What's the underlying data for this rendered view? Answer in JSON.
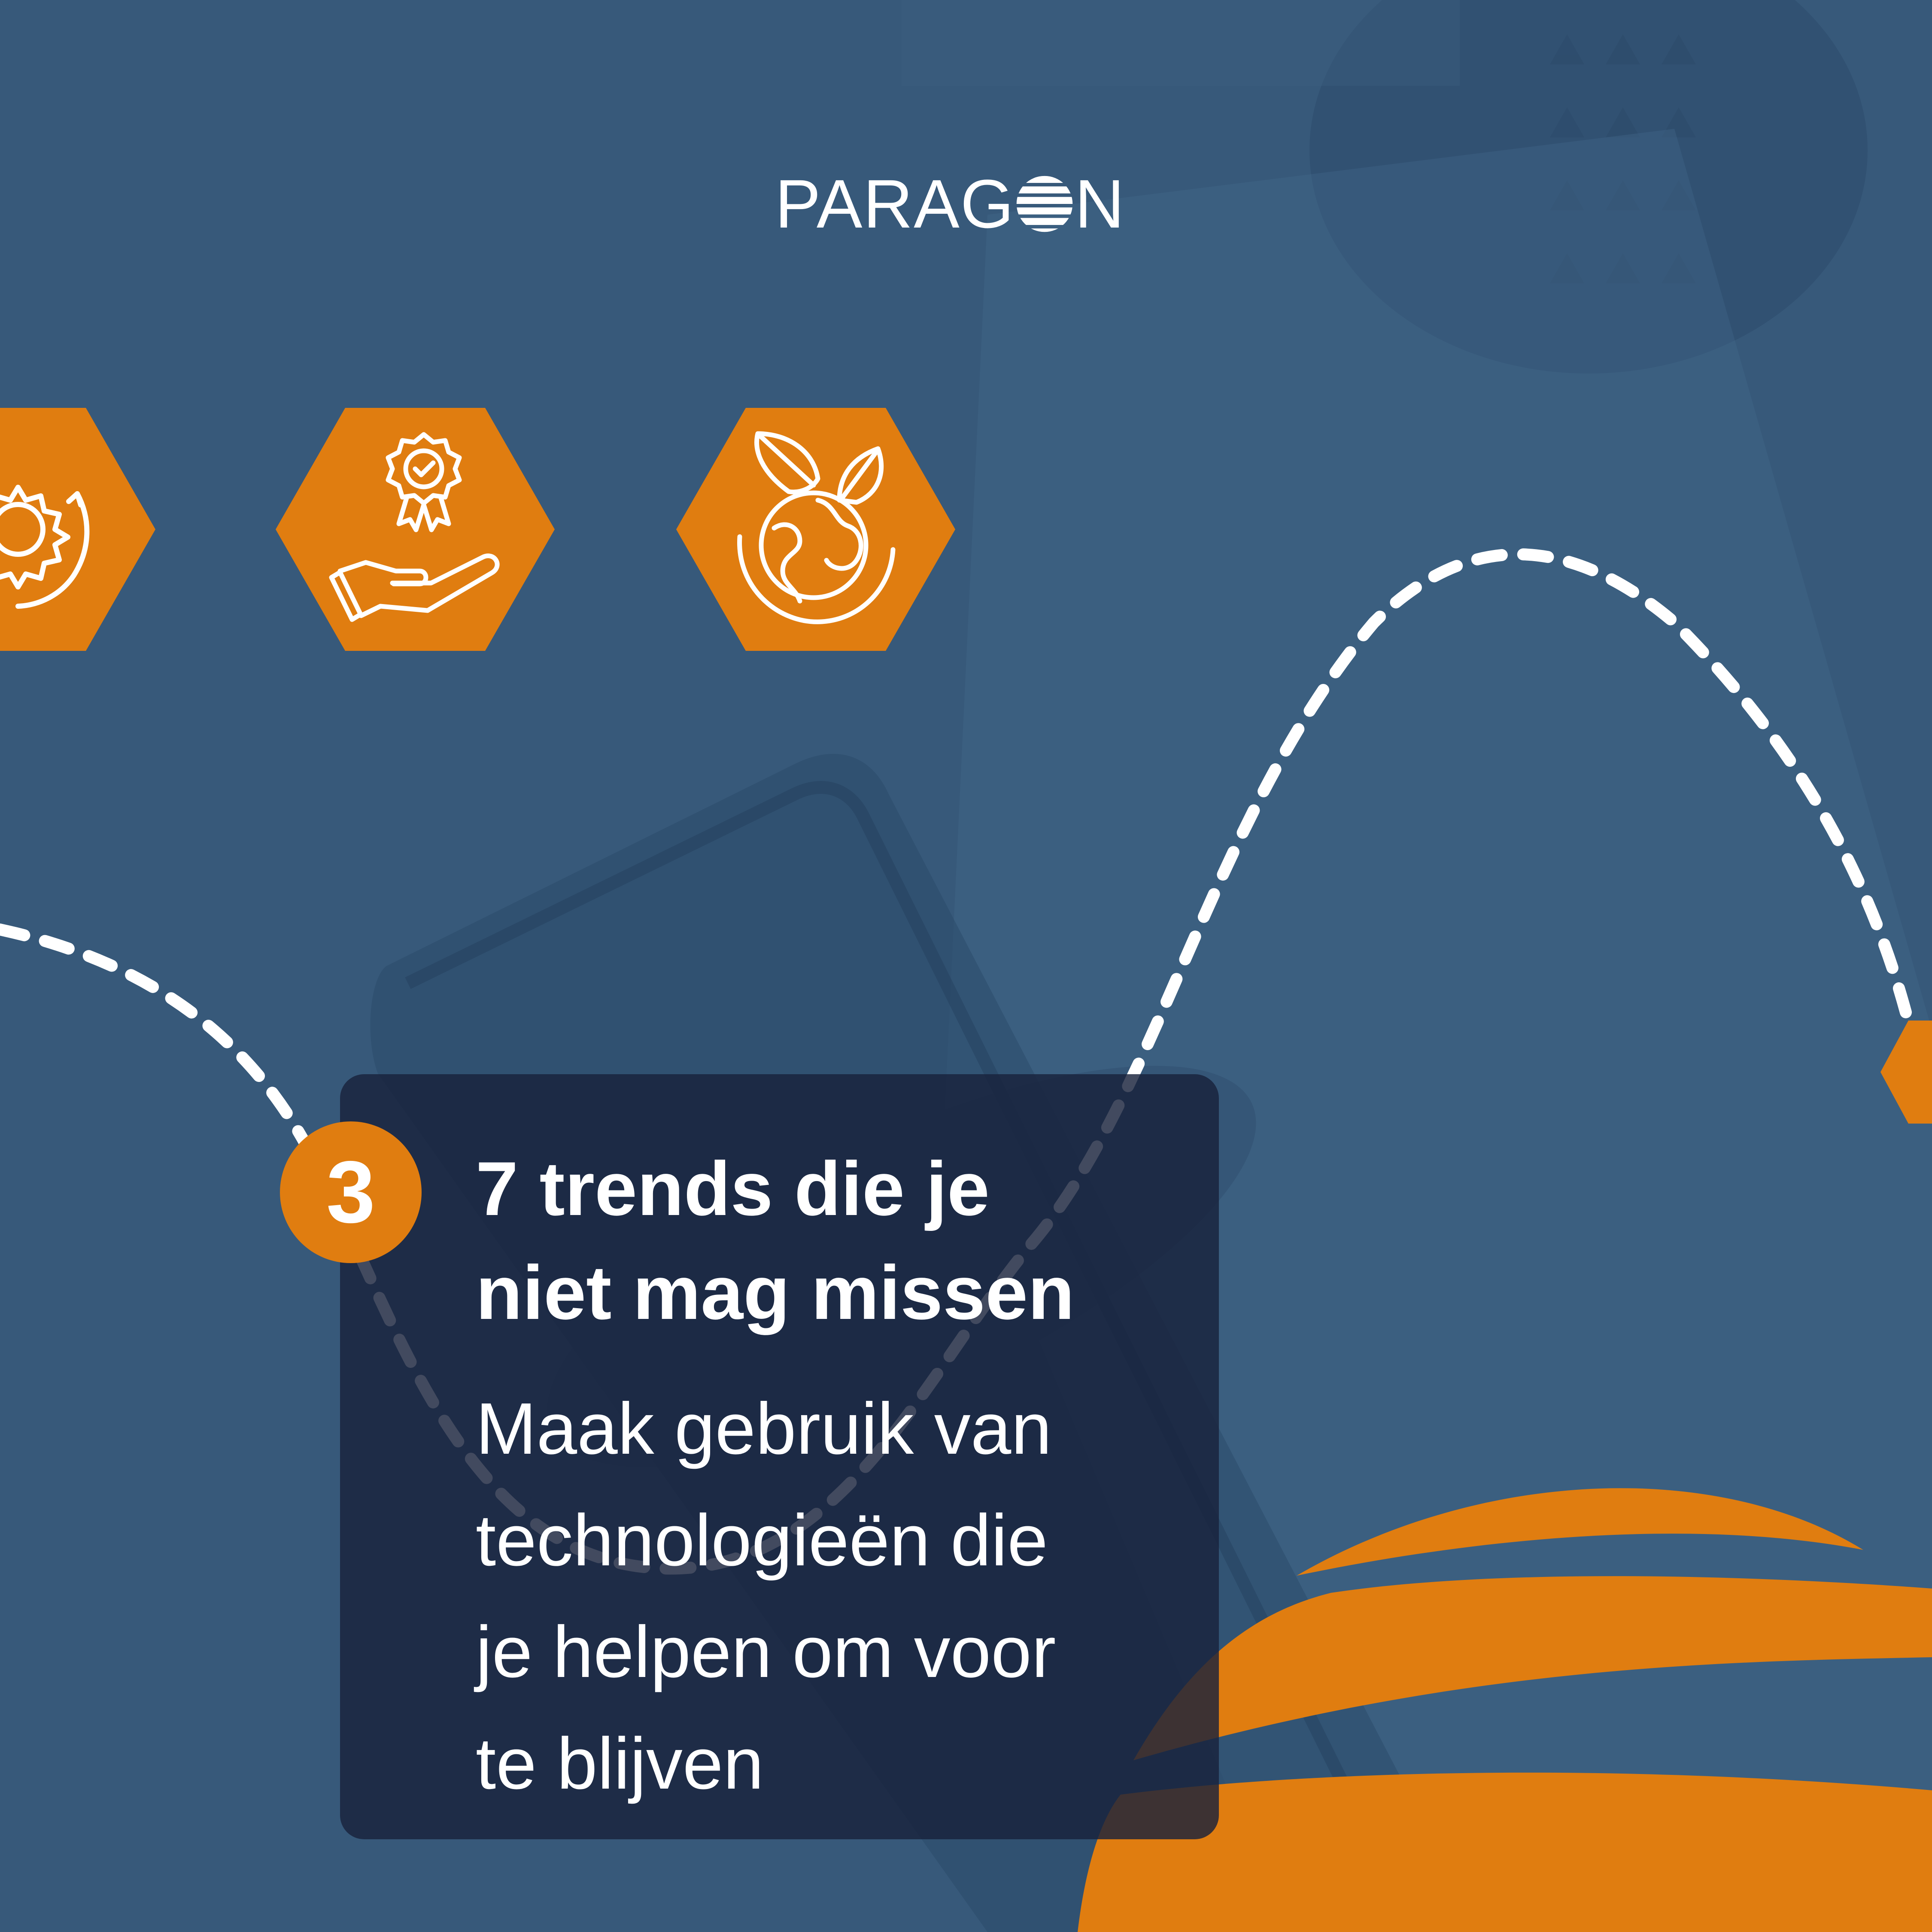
{
  "brand": {
    "logo_left": "PARAG",
    "logo_right": "N"
  },
  "icons": [
    {
      "name": "gear-cycle-icon"
    },
    {
      "name": "award-hand-icon"
    },
    {
      "name": "globe-leaves-icon"
    },
    {
      "name": "hexagon-partial-icon"
    }
  ],
  "colors": {
    "background": "#37597a",
    "accent": "#e07d10",
    "card": "#18223c",
    "text": "#ffffff"
  },
  "card": {
    "number": "3",
    "title_lines": [
      "7 trends die je",
      "niet mag missen"
    ],
    "body_lines": [
      "Maak gebruik van",
      "technologieën die",
      "je helpen om voor",
      "te blijven"
    ]
  }
}
